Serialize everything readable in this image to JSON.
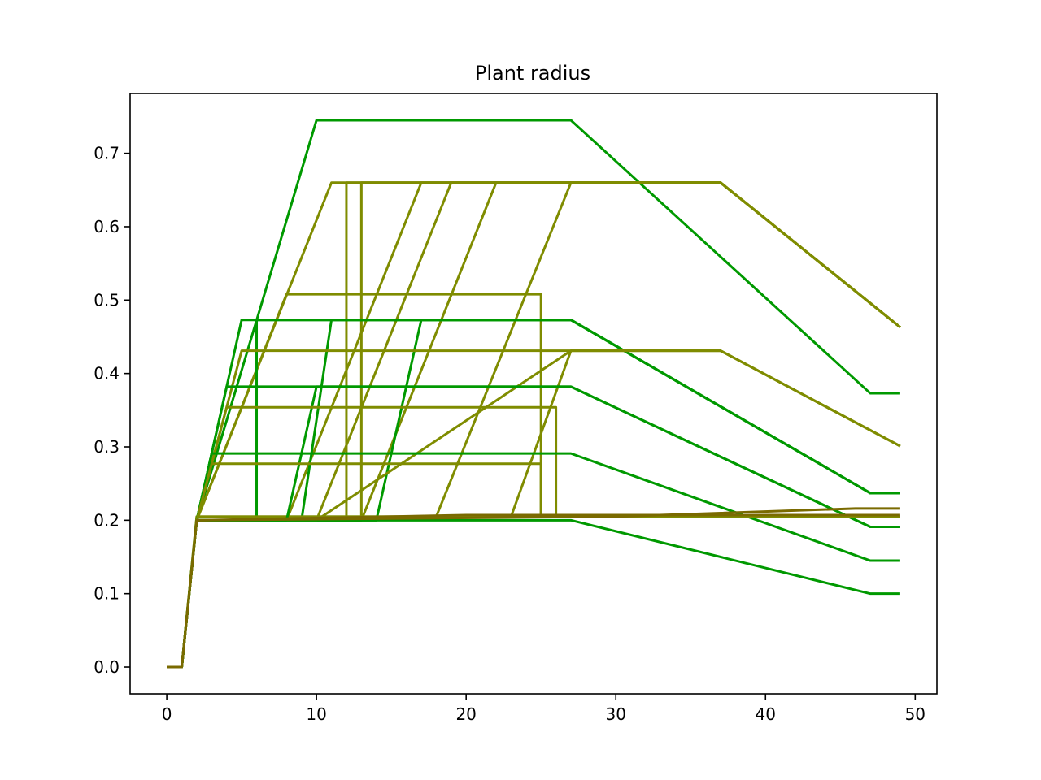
{
  "chart_data": {
    "type": "line",
    "title": "Plant radius",
    "xlabel": "",
    "ylabel": "",
    "xlim": [
      -2.45,
      51.45
    ],
    "ylim": [
      -0.0365,
      0.7815
    ],
    "xticks": [
      0,
      10,
      20,
      30,
      40,
      50
    ],
    "xtick_labels": [
      "0",
      "10",
      "20",
      "30",
      "40",
      "50"
    ],
    "yticks": [
      0.0,
      0.1,
      0.2,
      0.3,
      0.4,
      0.5,
      0.6,
      0.7
    ],
    "ytick_labels": [
      "0.0",
      "0.1",
      "0.2",
      "0.3",
      "0.4",
      "0.5",
      "0.6",
      "0.7"
    ],
    "grid": false,
    "colors": {
      "green": "#009900",
      "olive": "#7f8c00",
      "brown": "#7a6a00"
    },
    "series": [
      {
        "color": "#009900",
        "x": [
          0,
          1,
          2,
          10,
          27,
          47,
          49
        ],
        "y": [
          0,
          0,
          0.2,
          0.745,
          0.745,
          0.373,
          0.373
        ]
      },
      {
        "color": "#7f8c00",
        "x": [
          0,
          1,
          2,
          11,
          37,
          49
        ],
        "y": [
          0,
          0,
          0.2,
          0.66,
          0.66,
          0.463
        ]
      },
      {
        "color": "#7f8c00",
        "x": [
          0,
          1,
          2,
          12,
          12,
          37,
          49
        ],
        "y": [
          0,
          0,
          0.2,
          0.2,
          0.66,
          0.66,
          0.463
        ]
      },
      {
        "color": "#7f8c00",
        "x": [
          0,
          1,
          2,
          13,
          13,
          37,
          49
        ],
        "y": [
          0,
          0,
          0.2,
          0.2,
          0.66,
          0.66,
          0.463
        ]
      },
      {
        "color": "#7f8c00",
        "x": [
          0,
          1,
          2,
          8,
          17,
          37,
          49
        ],
        "y": [
          0,
          0,
          0.2,
          0.2,
          0.66,
          0.66,
          0.463
        ]
      },
      {
        "color": "#7f8c00",
        "x": [
          0,
          1,
          2,
          10,
          19,
          37,
          49
        ],
        "y": [
          0,
          0,
          0.2,
          0.2,
          0.66,
          0.66,
          0.463
        ]
      },
      {
        "color": "#7f8c00",
        "x": [
          0,
          1,
          2,
          13,
          22,
          37,
          49
        ],
        "y": [
          0,
          0,
          0.2,
          0.2,
          0.66,
          0.66,
          0.463
        ]
      },
      {
        "color": "#7f8c00",
        "x": [
          0,
          1,
          2,
          18,
          27,
          37,
          49
        ],
        "y": [
          0,
          0,
          0.205,
          0.205,
          0.66,
          0.66,
          0.463
        ]
      },
      {
        "color": "#7f8c00",
        "x": [
          0,
          1,
          2,
          8,
          25,
          25,
          27,
          37,
          49
        ],
        "y": [
          0,
          0,
          0.2,
          0.508,
          0.508,
          0.205,
          0.205,
          0.205,
          0.205
        ]
      },
      {
        "color": "#009900",
        "x": [
          0,
          1,
          2,
          5,
          27,
          47,
          49
        ],
        "y": [
          0,
          0,
          0.2,
          0.473,
          0.473,
          0.237,
          0.237
        ]
      },
      {
        "color": "#009900",
        "x": [
          0,
          1,
          2,
          6,
          6,
          27,
          47,
          49
        ],
        "y": [
          0,
          0,
          0.2,
          0.2,
          0.473,
          0.473,
          0.237,
          0.237
        ]
      },
      {
        "color": "#009900",
        "x": [
          0,
          1,
          2,
          9,
          11,
          27,
          47,
          49
        ],
        "y": [
          0,
          0,
          0.2,
          0.2,
          0.473,
          0.473,
          0.237,
          0.237
        ]
      },
      {
        "color": "#009900",
        "x": [
          0,
          1,
          2,
          14,
          17,
          27,
          47,
          49
        ],
        "y": [
          0,
          0,
          0.2,
          0.2,
          0.473,
          0.473,
          0.237,
          0.237
        ]
      },
      {
        "color": "#7f8c00",
        "x": [
          0,
          1,
          2,
          5,
          37,
          49
        ],
        "y": [
          0,
          0,
          0.2,
          0.431,
          0.431,
          0.301
        ]
      },
      {
        "color": "#7f8c00",
        "x": [
          0,
          1,
          2,
          23,
          27,
          37,
          49
        ],
        "y": [
          0,
          0,
          0.205,
          0.205,
          0.431,
          0.431,
          0.301
        ]
      },
      {
        "color": "#7f8c00",
        "x": [
          0,
          1,
          2,
          10,
          27,
          37,
          49
        ],
        "y": [
          0,
          0,
          0.2,
          0.2,
          0.431,
          0.431,
          0.301
        ]
      },
      {
        "color": "#009900",
        "x": [
          0,
          1,
          2,
          4,
          27,
          47,
          49
        ],
        "y": [
          0,
          0,
          0.2,
          0.382,
          0.382,
          0.191,
          0.191
        ]
      },
      {
        "color": "#009900",
        "x": [
          0,
          1,
          2,
          8,
          10,
          27,
          47,
          49
        ],
        "y": [
          0,
          0,
          0.2,
          0.2,
          0.382,
          0.382,
          0.191,
          0.191
        ]
      },
      {
        "color": "#7f8c00",
        "x": [
          0,
          1,
          2,
          4,
          26,
          26,
          37,
          49
        ],
        "y": [
          0,
          0,
          0.2,
          0.354,
          0.354,
          0.205,
          0.205,
          0.205
        ]
      },
      {
        "color": "#009900",
        "x": [
          0,
          1,
          2,
          3,
          27,
          47,
          49
        ],
        "y": [
          0,
          0,
          0.2,
          0.291,
          0.291,
          0.145,
          0.145
        ]
      },
      {
        "color": "#7f8c00",
        "x": [
          0,
          1,
          2,
          3,
          25,
          25,
          37,
          49
        ],
        "y": [
          0,
          0,
          0.2,
          0.277,
          0.277,
          0.205,
          0.205,
          0.205
        ]
      },
      {
        "color": "#009900",
        "x": [
          0,
          1,
          2,
          27,
          47,
          49
        ],
        "y": [
          0,
          0,
          0.2,
          0.2,
          0.1,
          0.1
        ]
      },
      {
        "color": "#7a6a00",
        "x": [
          0,
          1,
          2,
          20,
          37,
          49
        ],
        "y": [
          0,
          0,
          0.2,
          0.207,
          0.207,
          0.207
        ]
      },
      {
        "color": "#7a6a00",
        "x": [
          0,
          1,
          2,
          30,
          46,
          49
        ],
        "y": [
          0,
          0,
          0.2,
          0.205,
          0.216,
          0.216
        ]
      }
    ]
  }
}
